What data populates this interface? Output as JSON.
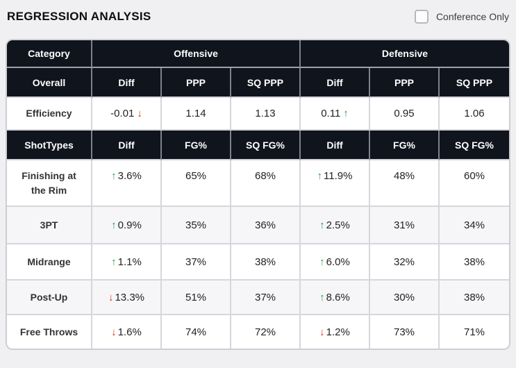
{
  "header": {
    "title": "REGRESSION ANALYSIS",
    "conference_only_label": "Conference Only"
  },
  "colors": {
    "header_bg": "#10141d",
    "header_text": "#ffffff",
    "positive_arrow": "#2f9e44",
    "negative_arrow": "#e0301e",
    "alt_row_bg": "#f6f6f8",
    "grid_border": "#d6d6dc",
    "page_bg": "#f0f0f2"
  },
  "table": {
    "group_header": {
      "category": "Category",
      "offensive": "Offensive",
      "defensive": "Defensive"
    },
    "overall_header": {
      "label": "Overall",
      "cols": [
        "Diff",
        "PPP",
        "SQ PPP",
        "Diff",
        "PPP",
        "SQ PPP"
      ]
    },
    "overall_row": {
      "label": "Efficiency",
      "cells": [
        {
          "value": "-0.01",
          "post": "↓"
        },
        {
          "value": "1.14"
        },
        {
          "value": "1.13"
        },
        {
          "value": "0.11",
          "post": "↑"
        },
        {
          "value": "0.95"
        },
        {
          "value": "1.06"
        }
      ]
    },
    "shottypes_header": {
      "label": "ShotTypes",
      "cols": [
        "Diff",
        "FG%",
        "SQ FG%",
        "Diff",
        "FG%",
        "SQ FG%"
      ]
    },
    "shot_rows": [
      {
        "label": "Finishing at the Rim",
        "cells": [
          {
            "pre": "↑",
            "value": "3.6%"
          },
          {
            "value": "65%"
          },
          {
            "value": "68%"
          },
          {
            "pre": "↑",
            "value": "11.9%"
          },
          {
            "value": "48%"
          },
          {
            "value": "60%"
          }
        ]
      },
      {
        "label": "3PT",
        "cells": [
          {
            "pre": "↑",
            "value": "0.9%"
          },
          {
            "value": "35%"
          },
          {
            "value": "36%"
          },
          {
            "pre": "↑",
            "value": "2.5%"
          },
          {
            "value": "31%"
          },
          {
            "value": "34%"
          }
        ]
      },
      {
        "label": "Midrange",
        "cells": [
          {
            "pre": "↑",
            "value": "1.1%"
          },
          {
            "value": "37%"
          },
          {
            "value": "38%"
          },
          {
            "pre": "↑",
            "value": "6.0%"
          },
          {
            "value": "32%"
          },
          {
            "value": "38%"
          }
        ]
      },
      {
        "label": "Post-Up",
        "cells": [
          {
            "pre": "↓",
            "value": "13.3%"
          },
          {
            "value": "51%"
          },
          {
            "value": "37%"
          },
          {
            "pre": "↑",
            "value": "8.6%"
          },
          {
            "value": "30%"
          },
          {
            "value": "38%"
          }
        ]
      },
      {
        "label": "Free Throws",
        "cells": [
          {
            "pre": "↓",
            "value": "1.6%"
          },
          {
            "value": "74%"
          },
          {
            "value": "72%"
          },
          {
            "pre": "↓",
            "value": "1.2%"
          },
          {
            "value": "73%"
          },
          {
            "value": "71%"
          }
        ]
      }
    ]
  }
}
